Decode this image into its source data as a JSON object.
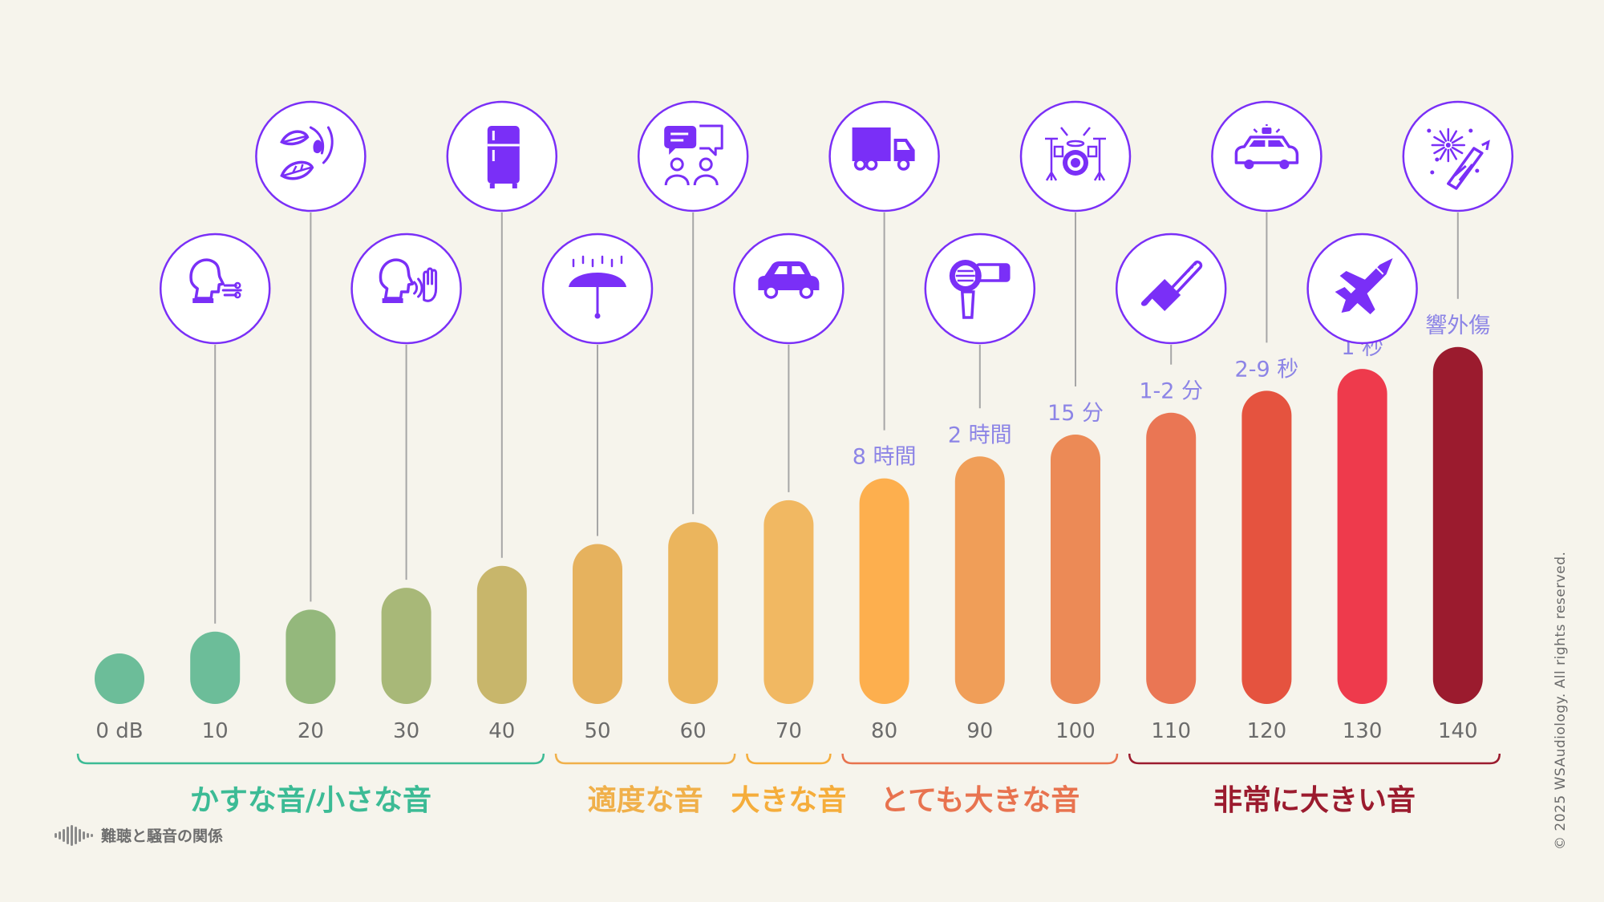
{
  "chart_data": {
    "type": "bar",
    "categories": [
      "0 dB",
      "10",
      "20",
      "30",
      "40",
      "50",
      "60",
      "70",
      "80",
      "90",
      "100",
      "110",
      "120",
      "130",
      "140"
    ],
    "values": [
      0,
      10,
      20,
      30,
      40,
      50,
      60,
      70,
      80,
      90,
      100,
      110,
      120,
      130,
      140
    ],
    "exposure_labels": [
      "",
      "",
      "",
      "",
      "",
      "",
      "",
      "",
      "8 時間",
      "2 時間",
      "15 分",
      "1-2 分",
      "2-9 秒",
      "1 秒",
      "響外傷"
    ],
    "icons": [
      "breathing-icon",
      "rustling-leaves-icon",
      "whisper-icon",
      "refrigerator-icon",
      "light-rain-icon",
      "conversation-icon",
      "car-icon",
      "truck-icon",
      "hair-dryer-icon",
      "drum-kit-icon",
      "chainsaw-icon",
      "police-car-icon",
      "jet-plane-icon",
      "fireworks-icon"
    ],
    "bar_colors": [
      "#6cbd99",
      "#6cbd99",
      "#94b87c",
      "#a8b878",
      "#c8b66b",
      "#e6b25e",
      "#ebb55d",
      "#f1b862",
      "#fdaf4e",
      "#f09e58",
      "#ec8a56",
      "#ea7654",
      "#e5533f",
      "#ee3a4c",
      "#9b1b2e"
    ],
    "groups": [
      {
        "label": "かすな音/小さな音",
        "color": "#3cbb95",
        "from": 0,
        "to": 4
      },
      {
        "label": "適度な音",
        "color": "#f0b04a",
        "from": 5,
        "to": 6
      },
      {
        "label": "大きな音",
        "color": "#f5ad3b",
        "from": 7,
        "to": 7
      },
      {
        "label": "とても大きな音",
        "color": "#e8734f",
        "from": 8,
        "to": 10
      },
      {
        "label": "非常に大きい音",
        "color": "#9b1b2e",
        "from": 11,
        "to": 14
      }
    ],
    "icon_color": "#7a2ff7",
    "label_color": "#8c84e6"
  },
  "footer": {
    "brand_label": "難聴と騒音の関係",
    "copyright": "© 2025 WSAudiology. All rights reserved."
  }
}
